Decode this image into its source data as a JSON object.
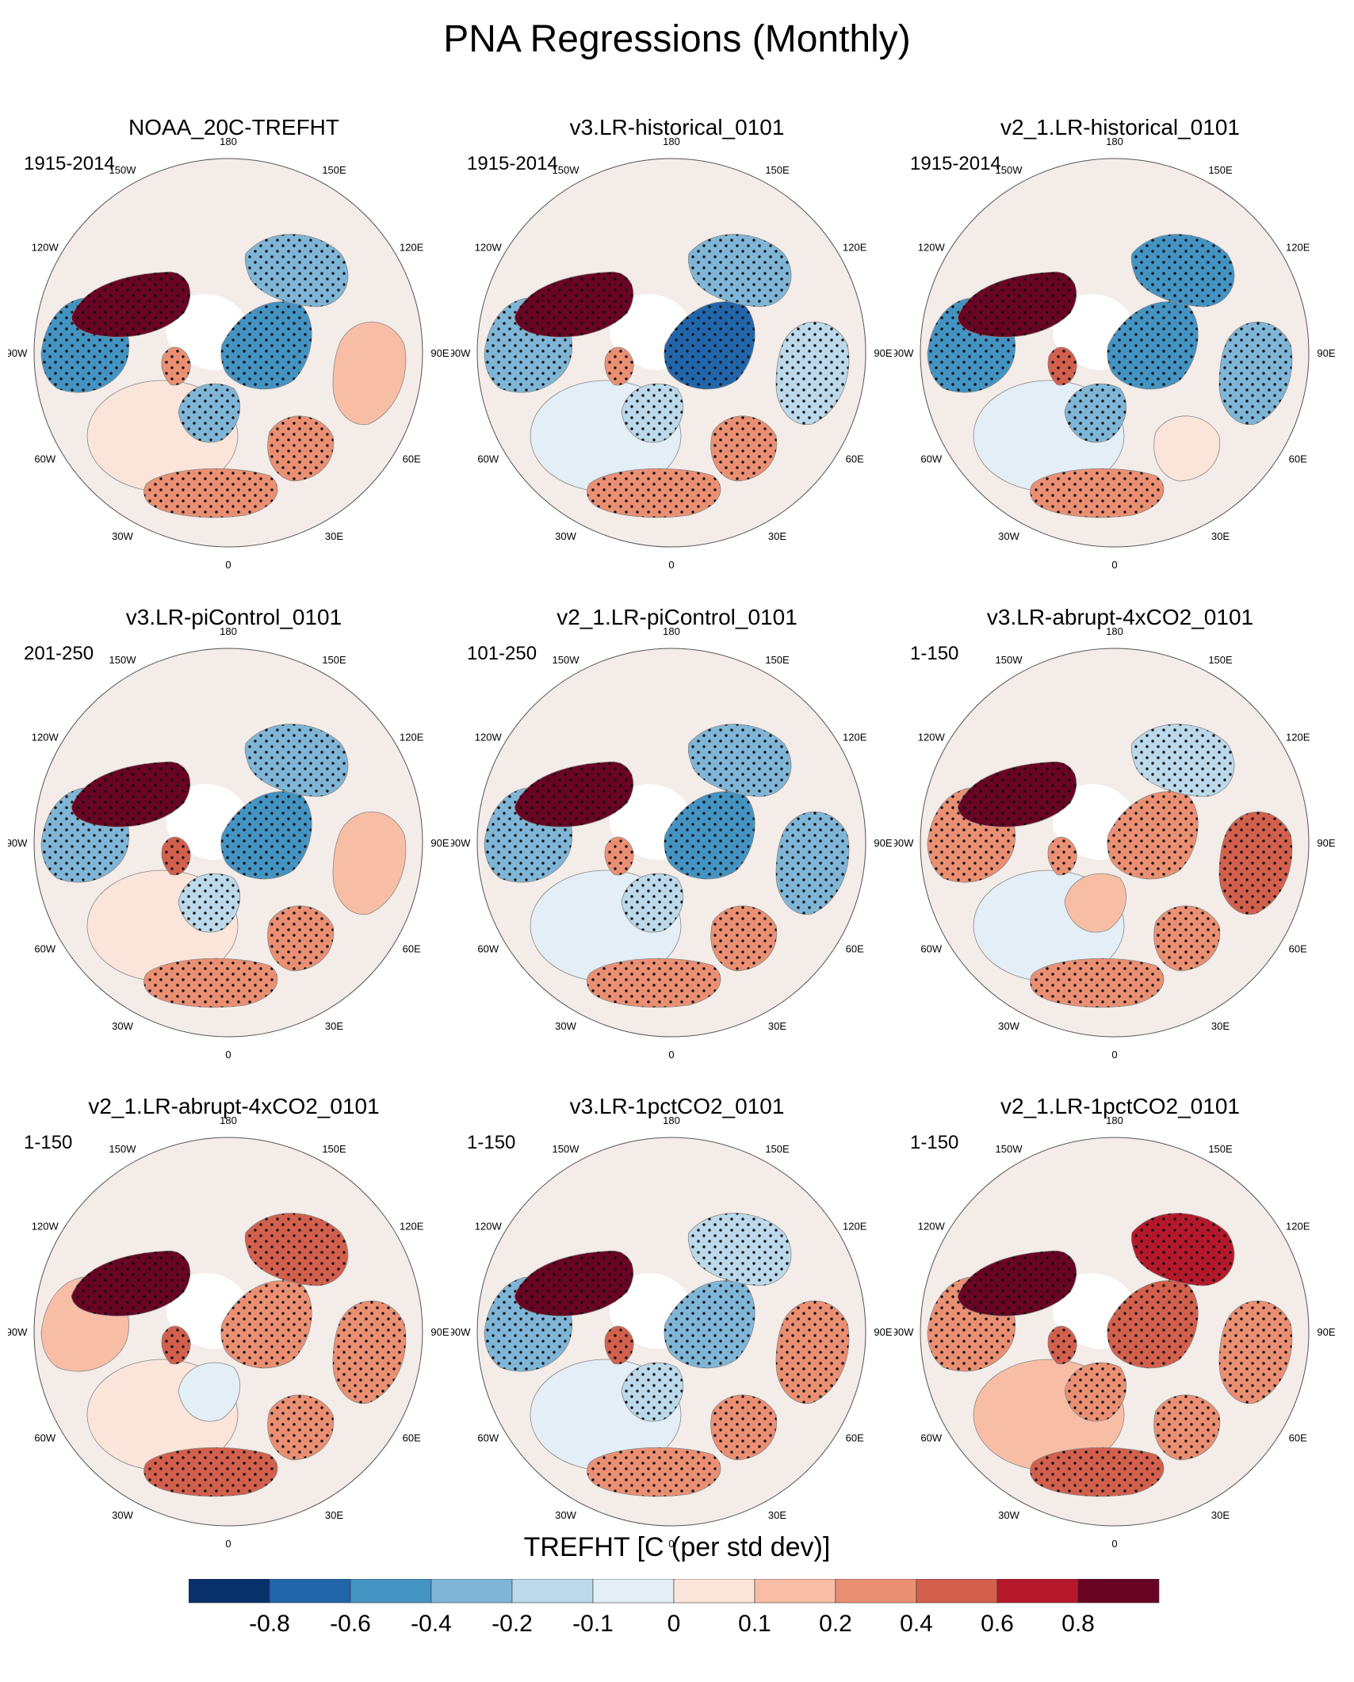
{
  "title": "PNA Regressions (Monthly)",
  "longitude_labels": [
    "180",
    "150E",
    "120E",
    "90E",
    "60E",
    "30E",
    "0",
    "30W",
    "60W",
    "90W",
    "120W",
    "150W"
  ],
  "panels": [
    {
      "title": "NOAA_20C-TREFHT",
      "period": "1915-2014",
      "pattern": {
        "alaska": 0.9,
        "canada": -0.5,
        "nw_russia": -0.5,
        "east_siberia": -0.4,
        "central_asia": 0.1,
        "greenland": 0.2,
        "europe": -0.4,
        "mid_east": 0.2,
        "n_africa": 0.2,
        "atlantic": 0.05
      }
    },
    {
      "title": "v3.LR-historical_0101",
      "period": "1915-2014",
      "pattern": {
        "alaska": 0.9,
        "canada": -0.4,
        "nw_russia": -0.7,
        "east_siberia": -0.4,
        "central_asia": -0.2,
        "greenland": 0.3,
        "europe": -0.2,
        "mid_east": 0.2,
        "n_africa": 0.3,
        "atlantic": -0.1
      }
    },
    {
      "title": "v2_1.LR-historical_0101",
      "period": "1915-2014",
      "pattern": {
        "alaska": 0.9,
        "canada": -0.5,
        "nw_russia": -0.5,
        "east_siberia": -0.5,
        "central_asia": -0.3,
        "greenland": 0.4,
        "europe": -0.3,
        "mid_east": 0.05,
        "n_africa": 0.3,
        "atlantic": -0.1
      }
    },
    {
      "title": "v3.LR-piControl_0101",
      "period": "201-250",
      "pattern": {
        "alaska": 0.9,
        "canada": -0.3,
        "nw_russia": -0.5,
        "east_siberia": -0.3,
        "central_asia": 0.1,
        "greenland": 0.4,
        "europe": -0.2,
        "mid_east": 0.3,
        "n_africa": 0.3,
        "atlantic": 0.05
      }
    },
    {
      "title": "v2_1.LR-piControl_0101",
      "period": "101-250",
      "pattern": {
        "alaska": 0.9,
        "canada": -0.4,
        "nw_russia": -0.5,
        "east_siberia": -0.4,
        "central_asia": -0.3,
        "greenland": 0.3,
        "europe": -0.2,
        "mid_east": 0.2,
        "n_africa": 0.3,
        "atlantic": -0.05
      }
    },
    {
      "title": "v3.LR-abrupt-4xCO2_0101",
      "period": "1-150",
      "pattern": {
        "alaska": 0.9,
        "canada": 0.3,
        "nw_russia": 0.3,
        "east_siberia": -0.2,
        "central_asia": 0.4,
        "greenland": 0.3,
        "europe": 0.1,
        "mid_east": 0.2,
        "n_africa": 0.3,
        "atlantic": -0.05
      }
    },
    {
      "title": "v2_1.LR-abrupt-4xCO2_0101",
      "period": "1-150",
      "pattern": {
        "alaska": 0.9,
        "canada": 0.1,
        "nw_russia": 0.3,
        "east_siberia": 0.5,
        "central_asia": 0.3,
        "greenland": 0.4,
        "europe": -0.1,
        "mid_east": 0.3,
        "n_africa": 0.4,
        "atlantic": 0.05
      }
    },
    {
      "title": "v3.LR-1pctCO2_0101",
      "period": "1-150",
      "pattern": {
        "alaska": 0.9,
        "canada": -0.3,
        "nw_russia": -0.4,
        "east_siberia": -0.2,
        "central_asia": 0.3,
        "greenland": 0.4,
        "europe": -0.2,
        "mid_east": 0.3,
        "n_africa": 0.3,
        "atlantic": -0.05
      }
    },
    {
      "title": "v2_1.LR-1pctCO2_0101",
      "period": "1-150",
      "pattern": {
        "alaska": 0.9,
        "canada": 0.3,
        "nw_russia": 0.4,
        "east_siberia": 0.7,
        "central_asia": 0.3,
        "greenland": 0.5,
        "europe": 0.3,
        "mid_east": 0.2,
        "n_africa": 0.4,
        "atlantic": 0.1
      }
    }
  ],
  "colorbar": {
    "title": "TREFHT [C (per std dev)]",
    "colors": [
      "#08306b",
      "#2165ab",
      "#4393c3",
      "#7fb6d7",
      "#bbd9ea",
      "#e3eef6",
      "#fbe5da",
      "#f8bea5",
      "#eb8f73",
      "#d35f4d",
      "#b5182a",
      "#6a0424"
    ],
    "ticks": [
      "-0.8",
      "-0.6",
      "-0.4",
      "-0.2",
      "-0.1",
      "0",
      "0.1",
      "0.2",
      "0.4",
      "0.6",
      "0.8"
    ]
  }
}
